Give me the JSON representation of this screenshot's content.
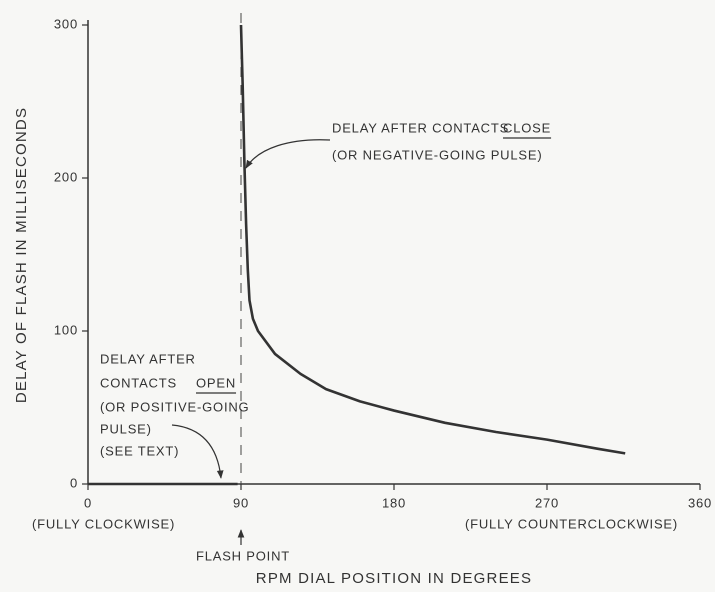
{
  "chart_data": {
    "type": "line",
    "xlabel": "RPM DIAL POSITION IN DEGREES",
    "ylabel": "DELAY OF FLASH IN MILLISECONDS",
    "xlim": [
      0,
      360
    ],
    "xticks": [
      0,
      90,
      180,
      270,
      360
    ],
    "ylim": [
      0,
      300
    ],
    "yticks": [
      0,
      100,
      200,
      300
    ],
    "vline": 90,
    "series": [
      {
        "color": "#333333",
        "x": [
          0,
          88
        ],
        "values": [
          0,
          0
        ]
      },
      {
        "color": "#333333",
        "x": [
          90,
          91,
          92,
          93,
          94,
          95,
          97,
          100,
          110,
          125,
          140,
          160,
          180,
          210,
          240,
          270,
          300,
          316
        ],
        "values": [
          300,
          260,
          210,
          170,
          140,
          120,
          108,
          100,
          85,
          72,
          62,
          54,
          48,
          40,
          34,
          29,
          23,
          20
        ]
      }
    ],
    "x_notes": [
      "(FULLY CLOCKWISE)",
      "(FULLY COUNTERCLOCKWISE)",
      "FLASH POINT"
    ],
    "annotation_close": [
      "DELAY AFTER CONTACTS",
      "CLOSE",
      "(OR NEGATIVE-GOING PULSE)"
    ],
    "annotation_open": [
      "DELAY AFTER",
      "CONTACTS",
      "OPEN",
      "(OR POSITIVE-GOING",
      "PULSE)",
      "(SEE TEXT)"
    ]
  }
}
